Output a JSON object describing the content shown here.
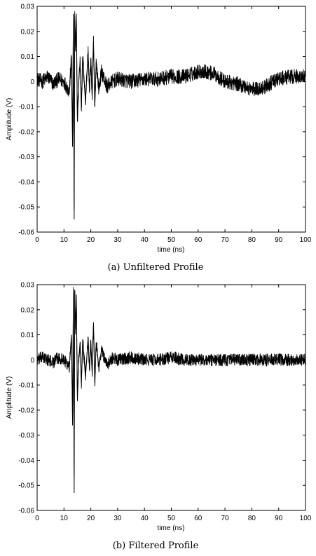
{
  "chart_data": [
    {
      "type": "line",
      "caption": "(a) Unfiltered Profile",
      "xlabel": "time (ns)",
      "ylabel": "Amplitude (V)",
      "xlim": [
        0,
        100
      ],
      "ylim": [
        -0.06,
        0.03
      ],
      "xticks": [
        "0",
        "10",
        "20",
        "30",
        "40",
        "50",
        "60",
        "70",
        "80",
        "90",
        "100"
      ],
      "yticks": [
        "0.03",
        "0.02",
        "0.01",
        "0",
        "-0.01",
        "-0.02",
        "-0.03",
        "-0.04",
        "-0.05",
        "-0.06"
      ],
      "grid": false,
      "line_color": "#000000",
      "series": [
        {
          "name": "",
          "x": [
            0,
            2,
            4,
            6,
            8,
            10,
            12,
            12.8,
            13.2,
            13.5,
            13.8,
            14.0,
            14.3,
            14.6,
            15.0,
            15.5,
            16,
            16.5,
            17,
            18,
            19,
            19.5,
            20,
            20.5,
            21,
            21.5,
            22,
            23,
            24,
            26,
            28,
            30,
            35,
            40,
            45,
            50,
            55,
            60,
            63,
            66,
            70,
            75,
            80,
            82,
            85,
            88,
            90,
            95,
            100
          ],
          "y": [
            0.001,
            0.0,
            0.002,
            -0.001,
            0.001,
            0.0,
            -0.004,
            0.01,
            -0.026,
            0.027,
            -0.055,
            0.026,
            0.012,
            0.027,
            -0.016,
            0.0,
            0.008,
            -0.01,
            0.01,
            -0.008,
            0.012,
            -0.004,
            0.009,
            -0.006,
            0.016,
            -0.01,
            0.008,
            -0.003,
            0.004,
            -0.002,
            0.0,
            0.001,
            0.0,
            0.001,
            0.001,
            0.002,
            0.002,
            0.004,
            0.004,
            0.003,
            0.0,
            -0.001,
            -0.003,
            -0.003,
            -0.002,
            0.0,
            0.001,
            0.002,
            0.002
          ],
          "noise_amplitude": 0.003
        }
      ]
    },
    {
      "type": "line",
      "caption": "(b) Filtered Profile",
      "xlabel": "time (ns)",
      "ylabel": "Amplitude (V)",
      "xlim": [
        0,
        100
      ],
      "ylim": [
        -0.06,
        0.03
      ],
      "xticks": [
        "0",
        "10",
        "20",
        "30",
        "40",
        "50",
        "60",
        "70",
        "80",
        "90",
        "100"
      ],
      "yticks": [
        "0.03",
        "0.02",
        "0.01",
        "0",
        "-0.01",
        "-0.02",
        "-0.03",
        "-0.04",
        "-0.05",
        "-0.06"
      ],
      "grid": false,
      "line_color": "#000000",
      "series": [
        {
          "name": "",
          "x": [
            0,
            2,
            4,
            6,
            8,
            10,
            12,
            12.8,
            13.2,
            13.5,
            13.8,
            14.0,
            14.3,
            14.6,
            15.0,
            15.5,
            16,
            16.5,
            17,
            18,
            19,
            19.5,
            20,
            20.5,
            21,
            21.5,
            22,
            23,
            24,
            26,
            28,
            30,
            35,
            40,
            45,
            50,
            55,
            60,
            65,
            70,
            75,
            80,
            85,
            90,
            95,
            100
          ],
          "y": [
            0.0,
            0.001,
            0.0,
            -0.001,
            0.001,
            0.0,
            -0.003,
            0.01,
            -0.025,
            0.027,
            -0.053,
            0.028,
            0.012,
            0.026,
            -0.015,
            0.0,
            0.007,
            -0.009,
            0.008,
            -0.007,
            0.009,
            -0.004,
            0.008,
            -0.005,
            0.015,
            -0.009,
            0.007,
            -0.003,
            0.004,
            -0.002,
            0.001,
            0.0,
            0.001,
            0.0,
            0.0,
            0.001,
            0.0,
            0.0,
            0.0,
            0.0,
            0.0,
            0.0,
            0.0,
            0.0,
            0.0,
            0.0
          ],
          "noise_amplitude": 0.0025
        }
      ]
    }
  ]
}
